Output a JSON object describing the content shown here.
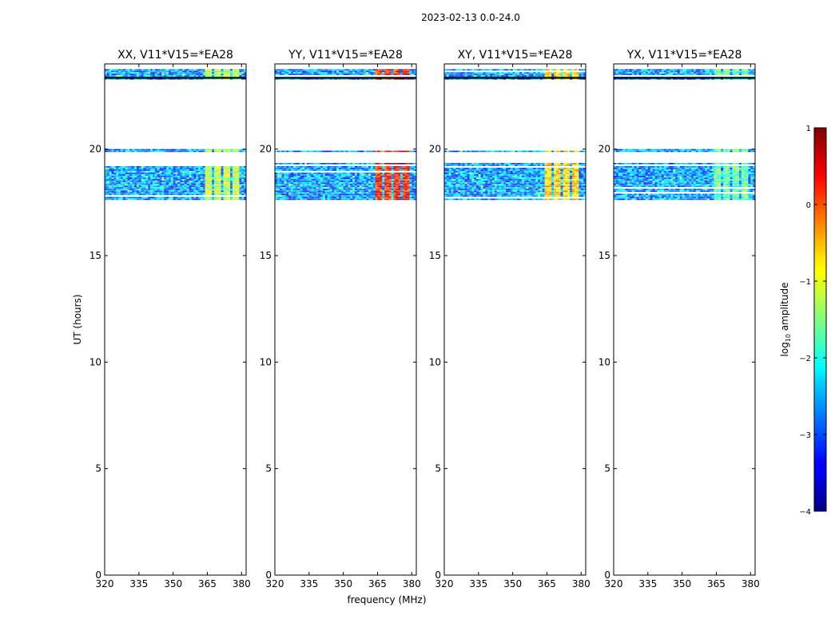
{
  "figure_title": "2023-02-13 0.0-24.0",
  "chart_data": {
    "type": "heatmap",
    "suptitle": "2023-02-13 0.0-24.0",
    "xlabel": "frequency (MHz)",
    "ylabel": "UT (hours)",
    "xlim": [
      320,
      382
    ],
    "ylim": [
      0,
      24
    ],
    "xticks": [
      320,
      335,
      350,
      365,
      380
    ],
    "yticks": [
      0,
      5,
      10,
      15,
      20
    ],
    "panels": [
      {
        "title": "XX, V11*V15=*EA28",
        "rfi_level": 0.45
      },
      {
        "title": "YY, V11*V15=*EA28",
        "rfi_level": 0.75
      },
      {
        "title": "XY, V11*V15=*EA28",
        "rfi_level": 0.55
      },
      {
        "title": "YX, V11*V15=*EA28",
        "rfi_level": 0.35
      }
    ],
    "data_ranges_ut": [
      [
        17.6,
        19.35
      ],
      [
        19.85,
        20.0
      ],
      [
        23.25,
        23.75
      ]
    ],
    "rfi_freq_range_mhz": [
      363,
      380
    ],
    "colorbar": {
      "label": "log10 amplitude",
      "label_prefix": "log",
      "label_sub": "10",
      "label_suffix": " amplitude",
      "range": [
        -4,
        1
      ],
      "ticks": [
        "1",
        "0",
        "−1",
        "−2",
        "−3",
        "−4"
      ],
      "tick_values": [
        1,
        0,
        -1,
        -2,
        -3,
        -4
      ],
      "colormap": "jet"
    }
  }
}
